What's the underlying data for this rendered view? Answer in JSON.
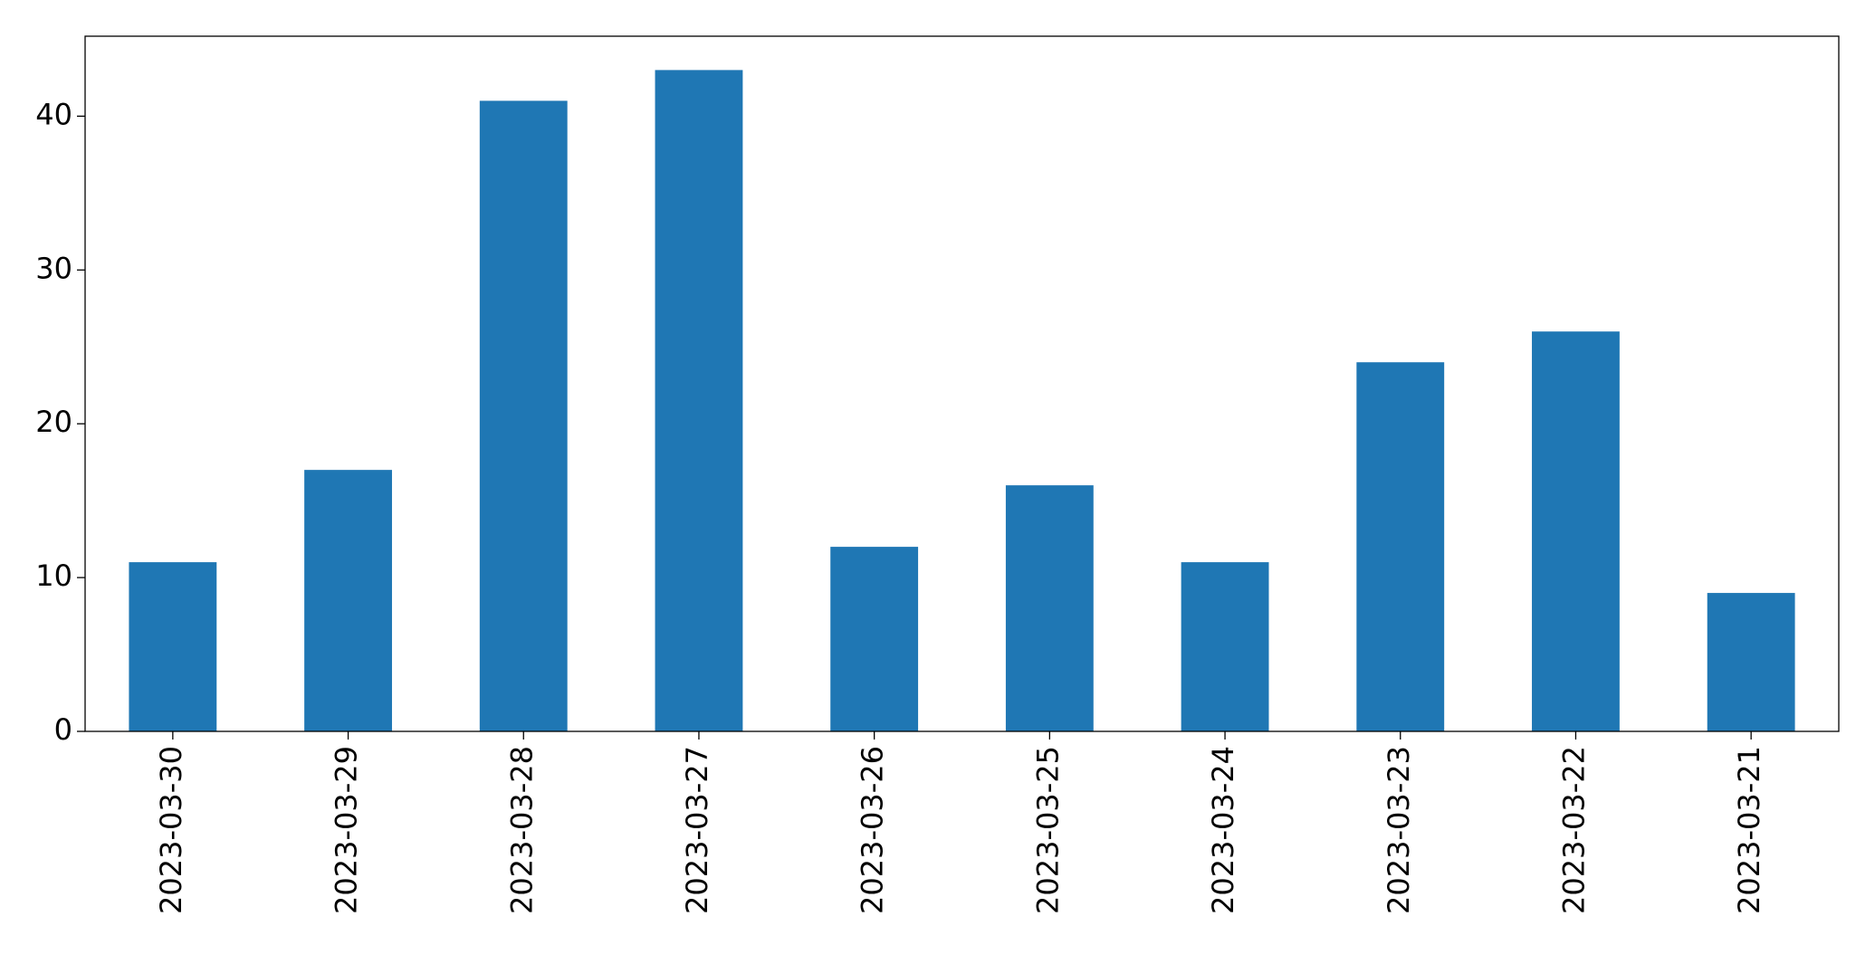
{
  "chart_data": {
    "type": "bar",
    "categories": [
      "2023-03-30",
      "2023-03-29",
      "2023-03-28",
      "2023-03-27",
      "2023-03-26",
      "2023-03-25",
      "2023-03-24",
      "2023-03-23",
      "2023-03-22",
      "2023-03-21"
    ],
    "values": [
      11,
      17,
      41,
      43,
      12,
      16,
      11,
      24,
      26,
      9
    ],
    "color": "#1f77b4",
    "ylim": [
      0,
      45.2
    ],
    "yticks": [
      0,
      10,
      20,
      30,
      40
    ],
    "grid": false
  }
}
